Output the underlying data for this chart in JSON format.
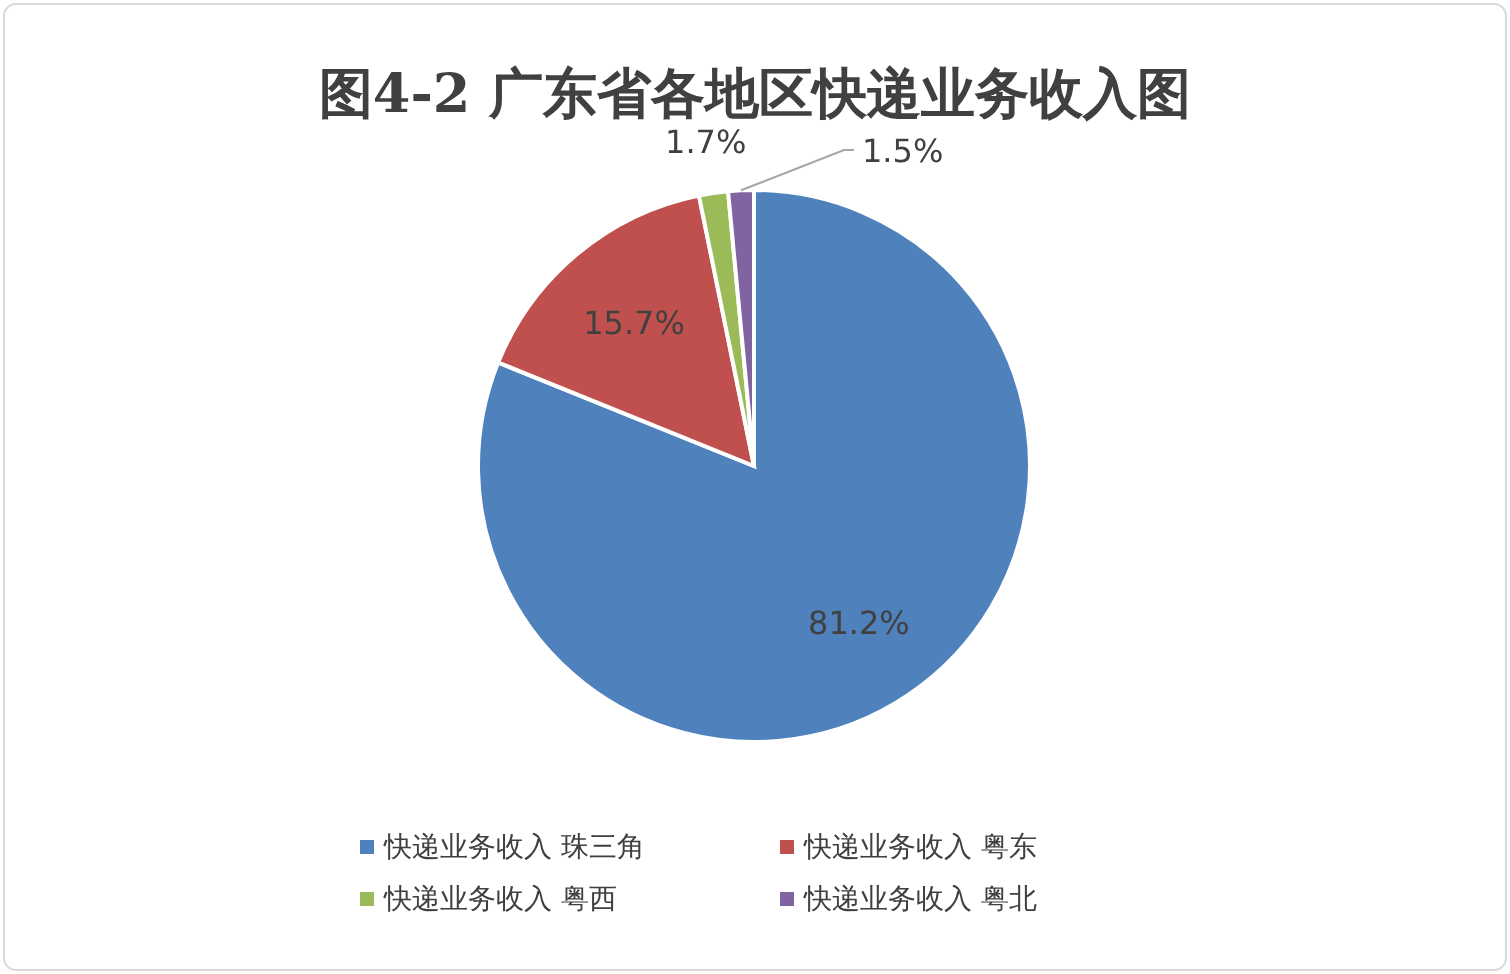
{
  "chart_data": {
    "type": "pie",
    "title": "图4-2 广东省各地区快递业务收入图",
    "categories": [
      "快递业务收入 珠三角",
      "快递业务收入 粤东",
      "快递业务收入 粤西",
      "快递业务收入 粤北"
    ],
    "values": [
      81.2,
      15.7,
      1.7,
      1.5
    ],
    "colors": [
      "#4f81bd",
      "#c0504d",
      "#9bbb59",
      "#8064a2"
    ],
    "value_labels": [
      "81.2%",
      "15.7%",
      "1.7%",
      "1.5%"
    ],
    "legend": "bottom"
  }
}
